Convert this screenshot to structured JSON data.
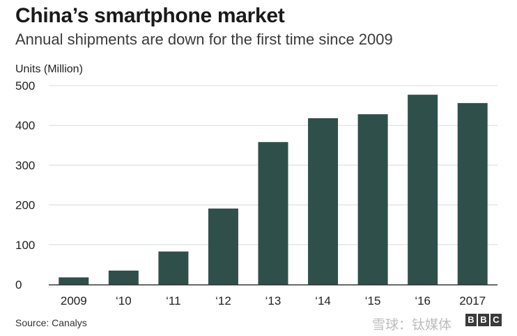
{
  "title": "China’s smartphone market",
  "subtitle": "Annual shipments are down for the first time since 2009",
  "source": "Source: Canalys",
  "watermark": "雪球：钛媒体",
  "brand": "BBC",
  "colors": {
    "bar": "#2f4f4a",
    "grid": "#d9d9d9",
    "axis": "#333333"
  },
  "chart_data": {
    "type": "bar",
    "ylabel": "Units (Million)",
    "xlabel": "",
    "categories": [
      "2009",
      "‘10",
      "‘11",
      "‘12",
      "‘13",
      "‘14",
      "‘15",
      "‘16",
      "2017"
    ],
    "values": [
      18,
      35,
      83,
      191,
      358,
      418,
      428,
      477,
      456
    ],
    "ylim": [
      0,
      500
    ],
    "yticks": [
      0,
      100,
      200,
      300,
      400,
      500
    ],
    "grid": true,
    "legend": "none"
  }
}
